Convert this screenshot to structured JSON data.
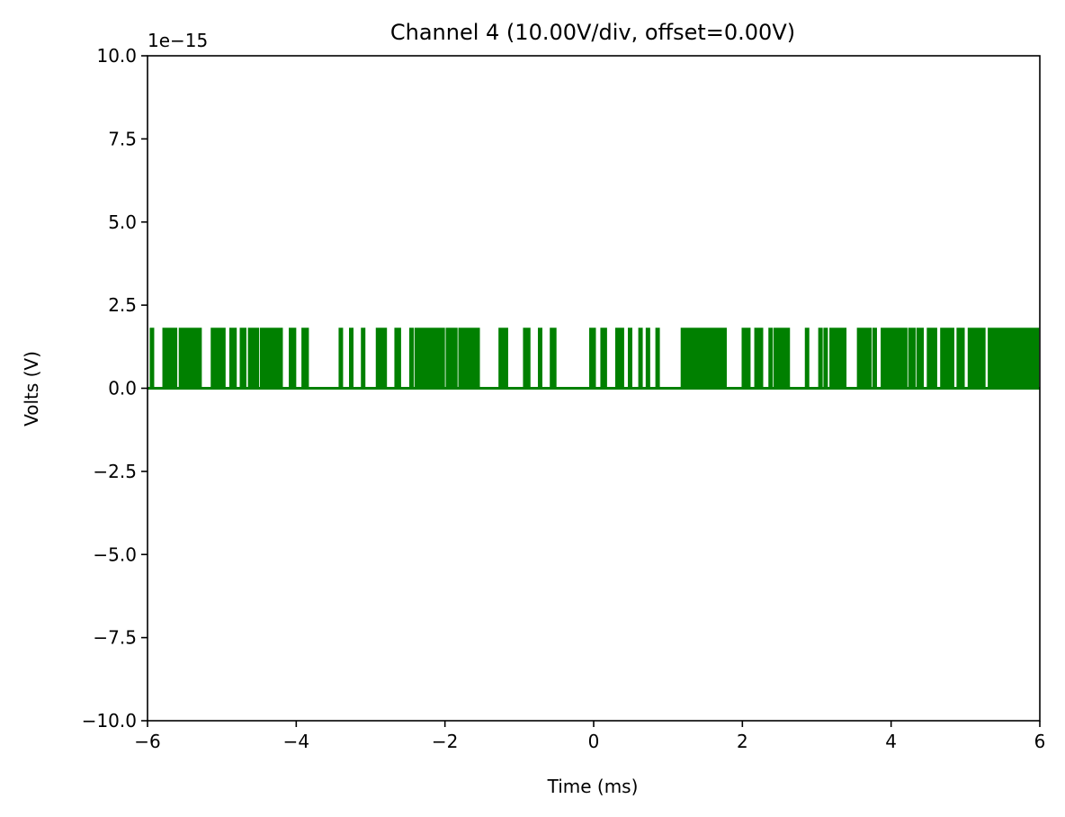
{
  "chart_data": {
    "type": "line",
    "title": "Channel 4 (10.00V/div, offset=0.00V)",
    "xlabel": "Time (ms)",
    "ylabel": "Volts (V)",
    "y_scale_label": "1e−15",
    "xlim": [
      -6,
      6
    ],
    "ylim": [
      -10,
      10
    ],
    "x_ticks": [
      -6,
      -4,
      -2,
      0,
      2,
      4,
      6
    ],
    "x_tick_labels": [
      "−6",
      "−4",
      "−2",
      "0",
      "2",
      "4",
      "6"
    ],
    "y_ticks": [
      -10,
      -7.5,
      -5,
      -2.5,
      0,
      2.5,
      5,
      7.5,
      10
    ],
    "y_tick_labels": [
      "−10.0",
      "−7.5",
      "−5.0",
      "−2.5",
      "0.0",
      "2.5",
      "5.0",
      "7.5",
      "10.0"
    ],
    "grid": false,
    "series": [
      {
        "color": "#008000",
        "baseline": 0,
        "pulse_height": 1.78,
        "pulse_times_ms": [
          -5.94,
          -5.77,
          -5.74,
          -5.72,
          -5.7,
          -5.66,
          -5.63,
          -5.55,
          -5.51,
          -5.48,
          -5.46,
          -5.44,
          -5.42,
          -5.4,
          -5.37,
          -5.34,
          -5.3,
          -5.12,
          -5.1,
          -5.07,
          -5.04,
          -4.98,
          -4.87,
          -4.83,
          -4.73,
          -4.7,
          -4.62,
          -4.56,
          -4.53,
          -4.46,
          -4.43,
          -4.41,
          -4.38,
          -4.34,
          -4.31,
          -4.26,
          -4.21,
          -4.07,
          -4.03,
          -3.9,
          -3.86,
          -3.4,
          -3.26,
          -3.1,
          -2.9,
          -2.85,
          -2.81,
          -2.65,
          -2.62,
          -2.45,
          -2.38,
          -2.35,
          -2.33,
          -2.3,
          -2.25,
          -2.2,
          -2.18,
          -2.12,
          -2.07,
          -2.03,
          -1.96,
          -1.93,
          -1.9,
          -1.86,
          -1.79,
          -1.73,
          -1.7,
          -1.67,
          -1.64,
          -1.6,
          -1.56,
          -1.25,
          -1.22,
          -1.18,
          -0.92,
          -0.88,
          -0.72,
          -0.56,
          -0.53,
          -0.03,
          0.0,
          0.12,
          0.15,
          0.32,
          0.38,
          0.49,
          0.63,
          0.73,
          0.86,
          1.2,
          1.24,
          1.29,
          1.32,
          1.36,
          1.4,
          1.44,
          1.48,
          1.54,
          1.59,
          1.62,
          1.65,
          1.7,
          1.74,
          1.76,
          2.02,
          2.08,
          2.19,
          2.22,
          2.25,
          2.38,
          2.45,
          2.5,
          2.55,
          2.61,
          2.87,
          3.05,
          3.12,
          3.2,
          3.24,
          3.27,
          3.31,
          3.37,
          3.57,
          3.6,
          3.64,
          3.68,
          3.71,
          3.78,
          3.89,
          3.94,
          4.0,
          4.06,
          4.12,
          4.15,
          4.19,
          4.26,
          4.3,
          4.37,
          4.41,
          4.51,
          4.56,
          4.59,
          4.69,
          4.73,
          4.77,
          4.82,
          4.91,
          4.96,
          5.06,
          5.12,
          5.18,
          5.24,
          5.33,
          5.38,
          5.42,
          5.47,
          5.51,
          5.57,
          5.63,
          5.66,
          5.69,
          5.72,
          5.75,
          5.78,
          5.81,
          5.84,
          5.87,
          5.9,
          5.93,
          5.96
        ]
      }
    ]
  }
}
